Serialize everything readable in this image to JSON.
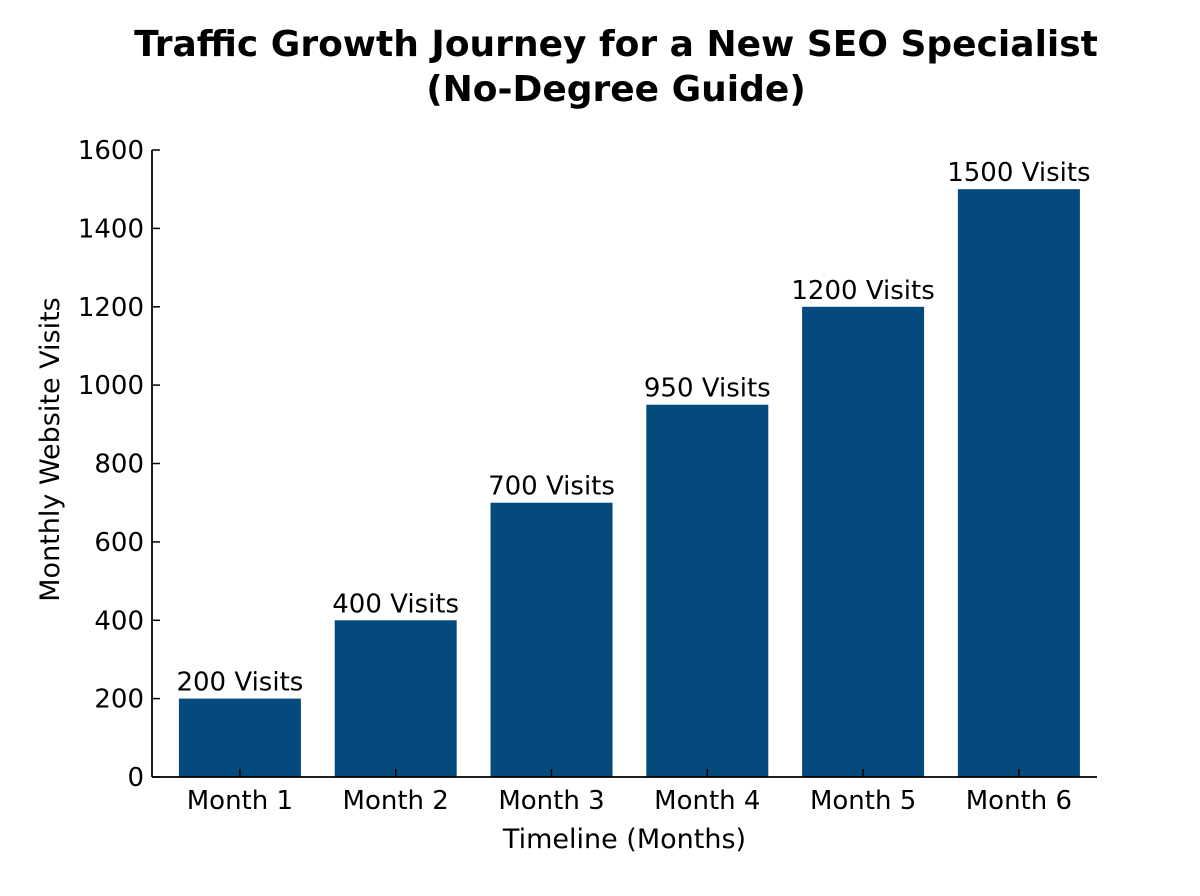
{
  "chart_data": {
    "type": "bar",
    "title_lines": [
      "Traffic Growth Journey for a New SEO Specialist",
      "(No-Degree Guide)"
    ],
    "xlabel": "Timeline (Months)",
    "ylabel": "Monthly Website Visits",
    "categories": [
      "Month 1",
      "Month 2",
      "Month 3",
      "Month 4",
      "Month 5",
      "Month 6"
    ],
    "values": [
      200,
      400,
      700,
      950,
      1200,
      1500
    ],
    "data_labels": [
      "200 Visits",
      "400 Visits",
      "700 Visits",
      "950 Visits",
      "1200 Visits",
      "1500 Visits"
    ],
    "ylim": [
      0,
      1600
    ],
    "yticks": [
      0,
      200,
      400,
      600,
      800,
      1000,
      1200,
      1400,
      1600
    ],
    "grid": false,
    "bar_color": "#054A7D"
  }
}
